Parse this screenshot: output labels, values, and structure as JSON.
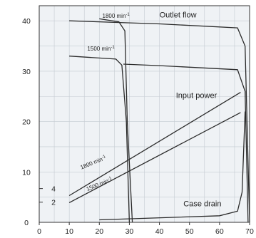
{
  "chart_data": {
    "type": "line",
    "title": "",
    "xlabel": "",
    "ylabel": "",
    "xlim": [
      0,
      70
    ],
    "ylim": [
      0,
      43
    ],
    "grid": true,
    "background": "#eff2f5",
    "line_color": "#2b2b2b",
    "x_ticks": [
      0,
      10,
      20,
      30,
      40,
      50,
      60,
      70
    ],
    "y_ticks": [
      0,
      10,
      20,
      30,
      40
    ],
    "x_tick_labels": [
      "0",
      "10",
      "20",
      "30",
      "40",
      "50",
      "60",
      "70"
    ],
    "y_tick_labels": [
      "0",
      "10",
      "20",
      "30",
      "40"
    ],
    "power_axis_ticks": [
      {
        "label": "4",
        "y": 6.7
      },
      {
        "label": "2",
        "y": 4.0
      }
    ],
    "series": [
      {
        "name": "Outlet flow, 1800 min⁻¹",
        "x": [
          10,
          40,
          66,
          68.5,
          70
        ],
        "y": [
          40,
          39.4,
          38.6,
          35,
          0
        ]
      },
      {
        "name": "Outlet flow, 1500 min⁻¹",
        "x": [
          10,
          25.5,
          27.5,
          29,
          30
        ],
        "y": [
          33,
          32.4,
          31.2,
          20,
          0
        ]
      },
      {
        "name": "Outlet flow, 1500 min⁻¹",
        "x": [
          28,
          40,
          66,
          68.5,
          69.5
        ],
        "y": [
          31.4,
          31.1,
          30.3,
          26,
          0
        ]
      },
      {
        "name": "Outlet flow, 1800 min⁻¹",
        "x": [
          20,
          26.5,
          28.5,
          29.3,
          31
        ],
        "y": [
          40.4,
          39.8,
          38,
          20,
          0
        ]
      },
      {
        "name": "Input power, 1800 min⁻¹",
        "x": [
          10,
          67
        ],
        "y": [
          5.3,
          25.8
        ]
      },
      {
        "name": "Input power, 1500 min⁻¹",
        "x": [
          10,
          67
        ],
        "y": [
          3.9,
          21.8
        ]
      },
      {
        "name": "Case drain",
        "x": [
          20,
          60,
          66,
          67.5,
          68.5
        ],
        "y": [
          0.5,
          1.3,
          2.2,
          6,
          22
        ]
      }
    ],
    "annotations": [
      {
        "text": "1800 min",
        "sup": "-1",
        "x": 21,
        "y": 40.6
      },
      {
        "text": "Outlet flow",
        "x": 40,
        "y": 40.7
      },
      {
        "text": "1500 min",
        "sup": "-1",
        "x": 16,
        "y": 34.1
      },
      {
        "text": "Input power",
        "x": 45.5,
        "y": 24.7
      },
      {
        "text": "1800 min",
        "sup": "-1",
        "x": 14,
        "y": 10.5,
        "rotate": -22
      },
      {
        "text": "1500 min",
        "sup": "-1",
        "x": 16,
        "y": 6.2,
        "rotate": -22
      },
      {
        "text": "Case drain",
        "x": 48,
        "y": 3.2
      }
    ]
  }
}
